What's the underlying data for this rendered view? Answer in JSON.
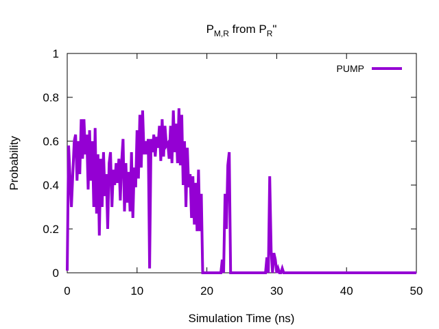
{
  "chart_data": {
    "type": "line",
    "title": {
      "main": "P",
      "sub1": "M,R",
      "mid": " from P",
      "sub2": "R",
      "end": "\""
    },
    "xlabel": "Simulation Time (ns)",
    "ylabel": "Probability",
    "xlim": [
      0,
      50
    ],
    "ylim": [
      0,
      1
    ],
    "xticks": [
      0,
      10,
      20,
      30,
      40,
      50
    ],
    "yticks": [
      0,
      0.2,
      0.4,
      0.6,
      0.8,
      1
    ],
    "ytick_labels": [
      "0",
      "0.2",
      "0.4",
      "0.6",
      "0.8",
      "1"
    ],
    "grid": false,
    "legend_position": "top-right",
    "series": [
      {
        "name": "PUMP",
        "color": "#9400d3",
        "x": [
          0,
          0.2,
          0.6,
          1.0,
          1.2,
          1.4,
          1.6,
          1.8,
          2.0,
          2.2,
          2.4,
          2.6,
          2.8,
          3.0,
          3.2,
          3.4,
          3.6,
          3.8,
          4.0,
          4.2,
          4.4,
          4.6,
          4.8,
          5.0,
          5.2,
          5.4,
          5.6,
          5.8,
          6.0,
          6.2,
          6.4,
          6.6,
          6.8,
          7.0,
          7.2,
          7.4,
          7.6,
          7.8,
          8.0,
          8.2,
          8.4,
          8.6,
          8.8,
          9.0,
          9.2,
          9.4,
          9.6,
          9.8,
          10.0,
          10.2,
          10.4,
          10.6,
          10.8,
          11.0,
          11.2,
          11.4,
          11.6,
          11.8,
          12.0,
          12.2,
          12.4,
          12.6,
          12.8,
          13.0,
          13.2,
          13.4,
          13.6,
          13.8,
          14.0,
          14.2,
          14.4,
          14.6,
          14.8,
          15.0,
          15.2,
          15.4,
          15.6,
          15.8,
          16.0,
          16.2,
          16.4,
          16.6,
          16.8,
          17.0,
          17.2,
          17.4,
          17.6,
          17.8,
          18.0,
          18.2,
          18.4,
          18.6,
          18.8,
          19.0,
          19.2,
          19.4,
          19.6,
          20.0,
          21.0,
          22.0,
          22.2,
          22.4,
          22.6,
          22.8,
          23.0,
          23.2,
          23.4,
          24.0,
          26.0,
          28.0,
          28.4,
          28.6,
          28.8,
          29.0,
          29.2,
          29.4,
          29.6,
          29.8,
          30.0,
          30.2,
          30.4,
          30.6,
          30.8,
          31.0,
          35.0,
          40.0,
          45.0,
          50.0
        ],
        "values": [
          0.01,
          0.58,
          0.3,
          0.6,
          0.63,
          0.42,
          0.6,
          0.45,
          0.7,
          0.52,
          0.7,
          0.54,
          0.63,
          0.38,
          0.65,
          0.42,
          0.6,
          0.3,
          0.66,
          0.27,
          0.54,
          0.17,
          0.52,
          0.3,
          0.55,
          0.35,
          0.45,
          0.2,
          0.5,
          0.55,
          0.3,
          0.47,
          0.4,
          0.5,
          0.41,
          0.52,
          0.33,
          0.51,
          0.61,
          0.28,
          0.5,
          0.32,
          0.46,
          0.28,
          0.55,
          0.25,
          0.48,
          0.39,
          0.65,
          0.43,
          0.72,
          0.48,
          0.74,
          0.54,
          0.6,
          0.54,
          0.61,
          0.02,
          0.61,
          0.55,
          0.63,
          0.53,
          0.62,
          0.57,
          0.67,
          0.51,
          0.7,
          0.53,
          0.67,
          0.58,
          0.59,
          0.52,
          0.67,
          0.5,
          0.74,
          0.55,
          0.68,
          0.5,
          0.75,
          0.49,
          0.72,
          0.4,
          0.6,
          0.3,
          0.57,
          0.39,
          0.45,
          0.25,
          0.44,
          0.22,
          0.41,
          0.19,
          0.47,
          0.19,
          0.36,
          0.0,
          0.0,
          0.0,
          0.0,
          0.0,
          0.06,
          0.0,
          0.36,
          0.2,
          0.49,
          0.55,
          0.0,
          0.0,
          0.0,
          0.0,
          0.0,
          0.07,
          0.0,
          0.44,
          0.1,
          0.0,
          0.09,
          0.06,
          0.0,
          0.02,
          0.0,
          0.0,
          0.02,
          0.0,
          0.0,
          0.0,
          0.0,
          0.0
        ]
      }
    ]
  }
}
